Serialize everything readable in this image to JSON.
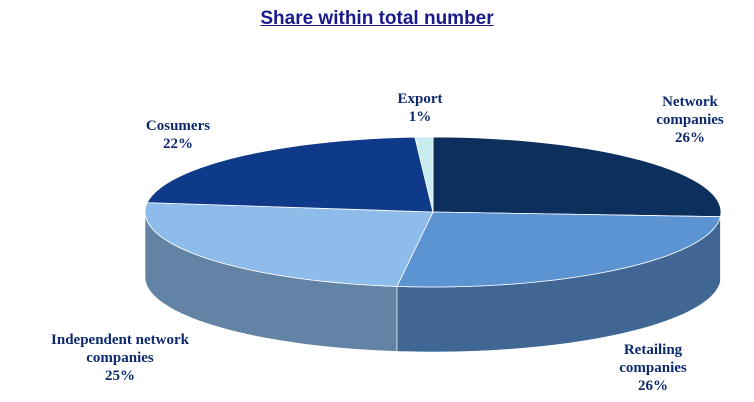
{
  "chart_data": {
    "type": "pie3d",
    "title": "Share within total number",
    "categories": [
      "Network companies",
      "Retailing companies",
      "Independent network companies",
      "Cosumers",
      "Export"
    ],
    "values": [
      26,
      26,
      25,
      22,
      1
    ],
    "value_labels": [
      "26%",
      "26%",
      "25%",
      "22%",
      "1%"
    ],
    "colors": [
      "#0d2f5e",
      "#5b93d3",
      "#8dbbea",
      "#0f3a8a",
      "#c8ecef"
    ]
  }
}
